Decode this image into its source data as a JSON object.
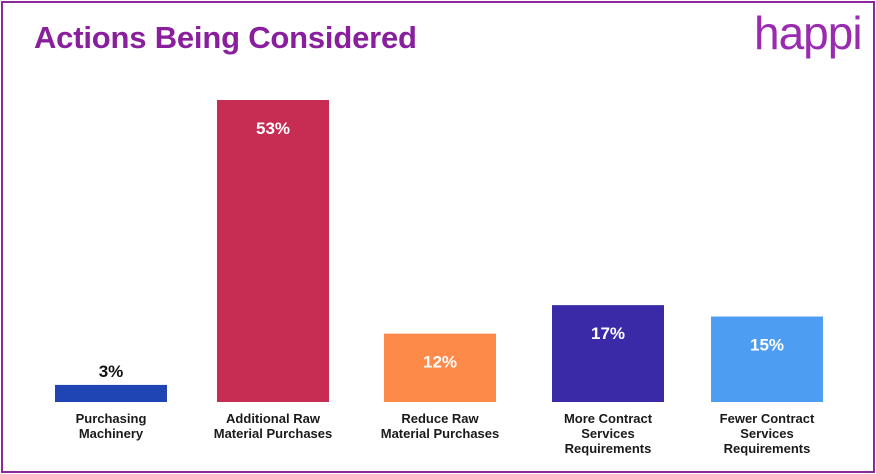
{
  "brand": {
    "logo_text": "happi",
    "accent": "#8a2a9c"
  },
  "chart_data": {
    "type": "bar",
    "title": "Actions Being Considered",
    "xlabel": "",
    "ylabel": "",
    "unit": "%",
    "ylim": [
      0,
      53
    ],
    "grid": false,
    "categories": [
      "Purchasing Machinery",
      "Additional Raw Material Purchases",
      "Reduce Raw Material Purchases",
      "More Contract Services Requirements",
      "Fewer Contract Services Requirements"
    ],
    "category_lines": [
      [
        "Purchasing",
        "Machinery"
      ],
      [
        "Additional Raw",
        "Material Purchases"
      ],
      [
        "Reduce Raw",
        "Material Purchases"
      ],
      [
        "More Contract",
        "Services",
        "Requirements"
      ],
      [
        "Fewer Contract",
        "Services",
        "Requirements"
      ]
    ],
    "values": [
      3,
      53,
      12,
      17,
      15
    ],
    "value_labels": [
      "3%",
      "53%",
      "12%",
      "17%",
      "15%"
    ],
    "colors": [
      "#1f44b3",
      "#c72c52",
      "#fd8a48",
      "#3b2aa8",
      "#4d9ef2"
    ]
  }
}
